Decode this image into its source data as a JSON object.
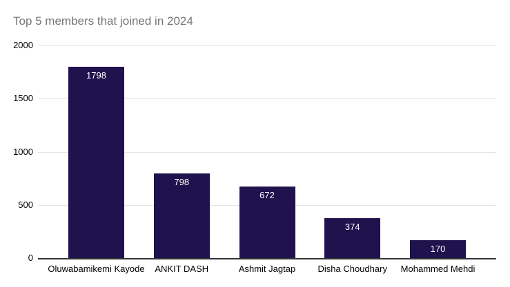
{
  "chart_data": {
    "type": "bar",
    "title": "Top 5 members that joined in 2024",
    "categories": [
      "Oluwabamikemi Kayode",
      "ANKIT DASH",
      "Ashmit Jagtap",
      "Disha Choudhary",
      "Mohammed Mehdi"
    ],
    "values": [
      1798,
      798,
      672,
      374,
      170
    ],
    "yticks": [
      0,
      500,
      1000,
      1500,
      2000
    ],
    "ylim": [
      0,
      2000
    ],
    "xlabel": "",
    "ylabel": "",
    "grid": true,
    "legend": "none",
    "value_label_position": "inside-end",
    "colors": {
      "bar": "#20124d",
      "title": "#757575",
      "gridline": "#e6e6e6",
      "axis_line": "#333333",
      "tick_label": "#000000",
      "category_label": "#000000",
      "value_label": "#ffffff",
      "background": "#ffffff"
    }
  }
}
